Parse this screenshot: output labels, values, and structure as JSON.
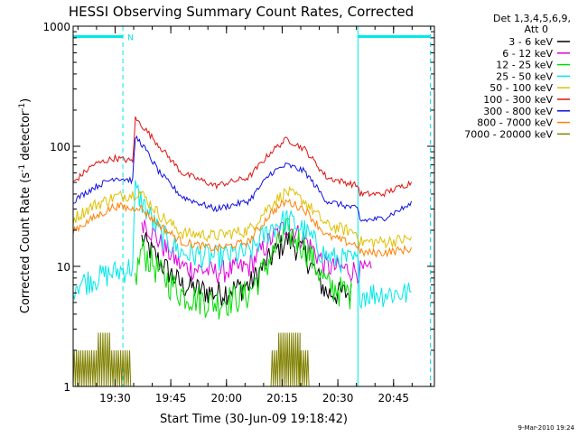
{
  "chart_data": {
    "type": "line",
    "title": "HESSI Observing Summary Count Rates, Corrected",
    "xlabel": "Start Time (30-Jun-09 19:18:42)",
    "ylabel_main": "Corrected Count Rate (s",
    "ylabel_sup1": "-1",
    "ylabel_mid": " detector",
    "ylabel_sup2": "-1",
    "ylabel_end": ")",
    "yscale": "log",
    "ylim": [
      1,
      1000
    ],
    "xlim": [
      19.3117,
      20.9333
    ],
    "yticks": [
      {
        "value": 1,
        "label": "1"
      },
      {
        "value": 10,
        "label": "10"
      },
      {
        "value": 100,
        "label": "100"
      },
      {
        "value": 1000,
        "label": "1000"
      }
    ],
    "xticks": [
      {
        "value": 19.5,
        "label": "19:30"
      },
      {
        "value": 19.75,
        "label": "19:45"
      },
      {
        "value": 20.0,
        "label": "20:00"
      },
      {
        "value": 20.25,
        "label": "20:15"
      },
      {
        "value": 20.5,
        "label": "20:30"
      },
      {
        "value": 20.75,
        "label": "20:45"
      }
    ],
    "legend": {
      "header1": "Det 1,3,4,5,6,9,",
      "header2": "Att 0",
      "placement": "right"
    },
    "series": [
      {
        "name": "3 - 6 keV",
        "color": "#000000",
        "noise": 0.25,
        "points": [
          [
            19.62,
            17
          ],
          [
            19.7,
            11
          ],
          [
            19.8,
            7
          ],
          [
            19.95,
            6
          ],
          [
            20.1,
            7
          ],
          [
            20.2,
            12
          ],
          [
            20.27,
            17
          ],
          [
            20.35,
            13
          ],
          [
            20.45,
            6
          ],
          [
            20.56,
            6
          ]
        ]
      },
      {
        "name": "6 - 12 keV",
        "color": "#e000e0",
        "noise": 0.22,
        "points": [
          [
            19.62,
            25
          ],
          [
            19.7,
            16
          ],
          [
            19.8,
            10
          ],
          [
            19.95,
            9
          ],
          [
            20.1,
            10
          ],
          [
            20.2,
            17
          ],
          [
            20.27,
            22
          ],
          [
            20.35,
            17
          ],
          [
            20.45,
            10
          ],
          [
            20.65,
            9
          ]
        ]
      },
      {
        "name": "12 - 25 keV",
        "color": "#00dd00",
        "noise": 0.3,
        "points": [
          [
            19.59,
            8
          ],
          [
            19.62,
            14
          ],
          [
            19.7,
            9
          ],
          [
            19.8,
            6
          ],
          [
            19.95,
            5
          ],
          [
            20.1,
            6
          ],
          [
            20.2,
            12
          ],
          [
            20.27,
            20
          ],
          [
            20.35,
            15
          ],
          [
            20.45,
            7
          ],
          [
            20.56,
            6
          ]
        ]
      },
      {
        "name": "25 - 50 keV",
        "color": "#00e8e8",
        "noise": 0.25,
        "points": [
          [
            19.3117,
            7
          ],
          [
            19.4,
            8
          ],
          [
            19.5,
            9
          ],
          [
            19.58,
            10
          ],
          [
            19.59,
            45
          ],
          [
            19.62,
            35
          ],
          [
            19.7,
            19
          ],
          [
            19.8,
            13
          ],
          [
            19.95,
            12
          ],
          [
            20.1,
            13
          ],
          [
            20.2,
            21
          ],
          [
            20.27,
            25
          ],
          [
            20.35,
            20
          ],
          [
            20.45,
            12
          ],
          [
            20.59,
            11
          ],
          [
            20.6,
            6
          ],
          [
            20.7,
            6
          ],
          [
            20.83,
            6
          ]
        ]
      },
      {
        "name": "50 - 100 keV",
        "color": "#e0c000",
        "noise": 0.12,
        "points": [
          [
            19.3117,
            25
          ],
          [
            19.4,
            32
          ],
          [
            19.5,
            38
          ],
          [
            19.58,
            40
          ],
          [
            19.6,
            42
          ],
          [
            19.62,
            40
          ],
          [
            19.7,
            27
          ],
          [
            19.8,
            19
          ],
          [
            19.95,
            18
          ],
          [
            20.1,
            20
          ],
          [
            20.2,
            33
          ],
          [
            20.27,
            42
          ],
          [
            20.35,
            35
          ],
          [
            20.45,
            22
          ],
          [
            20.59,
            19
          ],
          [
            20.6,
            16
          ],
          [
            20.7,
            16
          ],
          [
            20.83,
            17
          ]
        ]
      },
      {
        "name": "100 - 300 keV",
        "color": "#e01010",
        "noise": 0.06,
        "points": [
          [
            19.3117,
            50
          ],
          [
            19.4,
            70
          ],
          [
            19.5,
            80
          ],
          [
            19.58,
            75
          ],
          [
            19.59,
            170
          ],
          [
            19.62,
            150
          ],
          [
            19.7,
            100
          ],
          [
            19.8,
            60
          ],
          [
            19.95,
            47
          ],
          [
            20.1,
            55
          ],
          [
            20.2,
            90
          ],
          [
            20.27,
            115
          ],
          [
            20.35,
            95
          ],
          [
            20.45,
            55
          ],
          [
            20.59,
            47
          ],
          [
            20.6,
            40
          ],
          [
            20.7,
            40
          ],
          [
            20.83,
            50
          ]
        ]
      },
      {
        "name": "300 - 800 keV",
        "color": "#1010e0",
        "noise": 0.06,
        "points": [
          [
            19.3117,
            35
          ],
          [
            19.4,
            45
          ],
          [
            19.5,
            55
          ],
          [
            19.58,
            52
          ],
          [
            19.59,
            120
          ],
          [
            19.62,
            105
          ],
          [
            19.7,
            60
          ],
          [
            19.8,
            38
          ],
          [
            19.95,
            30
          ],
          [
            20.1,
            35
          ],
          [
            20.2,
            60
          ],
          [
            20.27,
            70
          ],
          [
            20.35,
            62
          ],
          [
            20.45,
            35
          ],
          [
            20.59,
            30
          ],
          [
            20.6,
            24
          ],
          [
            20.7,
            25
          ],
          [
            20.83,
            33
          ]
        ]
      },
      {
        "name": "800 - 7000 keV",
        "color": "#ff8000",
        "noise": 0.08,
        "points": [
          [
            19.3117,
            20
          ],
          [
            19.4,
            25
          ],
          [
            19.5,
            32
          ],
          [
            19.58,
            30
          ],
          [
            19.6,
            32
          ],
          [
            19.62,
            30
          ],
          [
            19.7,
            22
          ],
          [
            19.8,
            16
          ],
          [
            19.95,
            14
          ],
          [
            20.1,
            16
          ],
          [
            20.2,
            28
          ],
          [
            20.27,
            35
          ],
          [
            20.35,
            30
          ],
          [
            20.45,
            18
          ],
          [
            20.59,
            15
          ],
          [
            20.6,
            13
          ],
          [
            20.7,
            13
          ],
          [
            20.83,
            14
          ]
        ]
      },
      {
        "name": "7000 - 20000 keV",
        "color": "#808000",
        "noise": 0,
        "points": []
      }
    ],
    "att_bars": [
      {
        "x0": 19.3117,
        "x1": 19.535,
        "y": 820
      },
      {
        "x0": 20.59,
        "x1": 20.915,
        "y": 820
      }
    ],
    "att_label": "N",
    "vlines_solid": [
      19.3117,
      20.59
    ],
    "vlines_dashed": [
      19.535,
      20.915
    ]
  },
  "footer": {
    "timestamp": "9-Mar-2010 19:24"
  }
}
